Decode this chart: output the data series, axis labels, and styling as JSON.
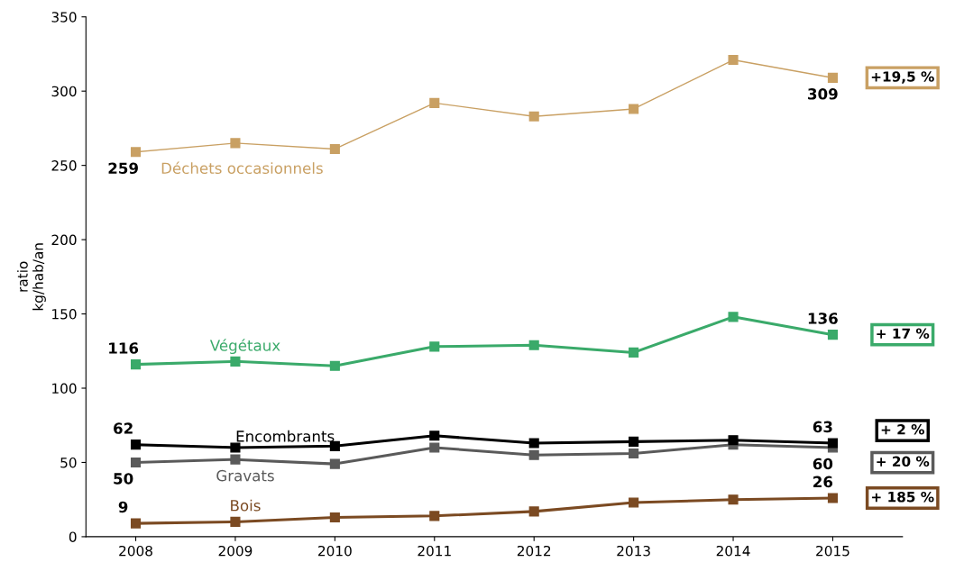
{
  "chart_data": {
    "type": "line",
    "ylabel": "ratio\nkg/hab/an",
    "categories": [
      "2008",
      "2009",
      "2010",
      "2011",
      "2012",
      "2013",
      "2014",
      "2015"
    ],
    "ylim": [
      0,
      350
    ],
    "yticks": [
      0,
      50,
      100,
      150,
      200,
      250,
      300,
      350
    ],
    "grid": false,
    "legend": false,
    "marker": "square",
    "line_style": "solid",
    "series": [
      {
        "name": "Déchets occasionnels",
        "color": "#c9a063",
        "values": [
          259,
          265,
          261,
          292,
          283,
          288,
          321,
          309
        ],
        "value_labels": [
          "259",
          null,
          null,
          null,
          null,
          null,
          null,
          "309"
        ]
      },
      {
        "name": "Végétaux",
        "color": "#3aaa6a",
        "values": [
          116,
          118,
          115,
          128,
          129,
          124,
          148,
          136
        ],
        "value_labels": [
          "116",
          null,
          null,
          null,
          null,
          null,
          null,
          "136"
        ]
      },
      {
        "name": "Encombrants",
        "color": "#000000",
        "values": [
          62,
          60,
          61,
          68,
          63,
          64,
          65,
          63
        ],
        "value_labels": [
          "62",
          null,
          null,
          null,
          null,
          null,
          null,
          "63"
        ]
      },
      {
        "name": "Gravats",
        "color": "#5a5a5a",
        "values": [
          50,
          52,
          49,
          60,
          55,
          56,
          62,
          60
        ],
        "value_labels": [
          "50",
          null,
          null,
          null,
          null,
          null,
          null,
          "60"
        ]
      },
      {
        "name": "Bois",
        "color": "#7b4a22",
        "values": [
          9,
          10,
          13,
          14,
          17,
          23,
          25,
          26
        ],
        "value_labels": [
          "9",
          null,
          null,
          null,
          null,
          null,
          null,
          "26"
        ]
      }
    ],
    "annotations": [
      "+19,5 %",
      "+ 17 %",
      "+ 2 %",
      "+ 20 %",
      "+ 185 %"
    ]
  }
}
